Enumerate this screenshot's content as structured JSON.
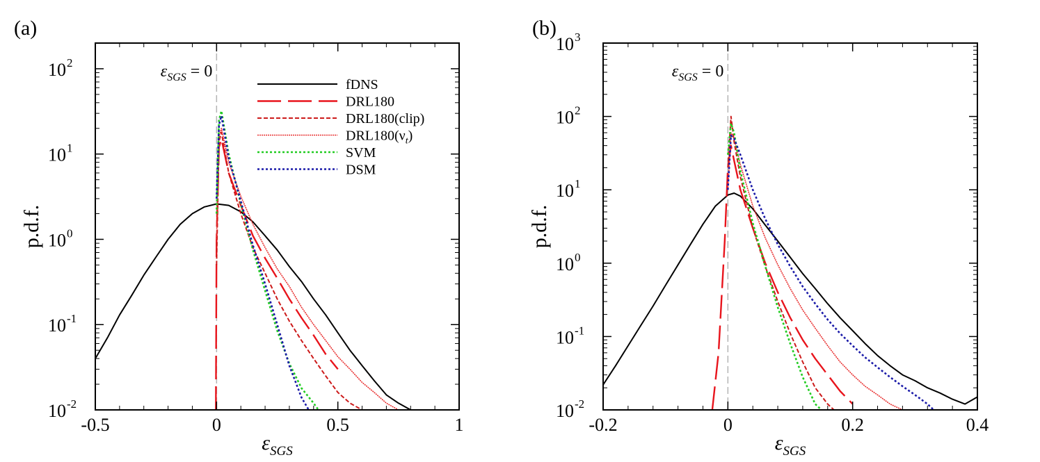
{
  "chart_data": [
    {
      "type": "line",
      "panel_label": "(a)",
      "ylabel": "p.d.f.",
      "xlabel_main": "ε",
      "xlabel_sub": "SGS",
      "yscale": "log",
      "xlim": [
        -0.5,
        1.0
      ],
      "ylim": [
        0.01,
        200
      ],
      "x_ticks": [
        -0.5,
        0,
        0.5,
        1
      ],
      "x_tick_labels": [
        "-0.5",
        "0",
        "0.5",
        "1"
      ],
      "y_ticks": [
        0.01,
        0.1,
        1,
        10,
        100
      ],
      "y_tick_labels": [
        {
          "base": "10",
          "exp": "-2"
        },
        {
          "base": "10",
          "exp": "-1"
        },
        {
          "base": "10",
          "exp": "0"
        },
        {
          "base": "10",
          "exp": "1"
        },
        {
          "base": "10",
          "exp": "2"
        }
      ],
      "annotation": {
        "main": "ε",
        "sub": "SGS",
        "rest": " = 0",
        "x": 0
      },
      "legend_position": "top-right",
      "series": [
        {
          "name": "fDNS",
          "style": "solid",
          "color": "#000000",
          "x": [
            -0.5,
            -0.45,
            -0.4,
            -0.35,
            -0.3,
            -0.25,
            -0.2,
            -0.15,
            -0.1,
            -0.05,
            0,
            0.05,
            0.1,
            0.15,
            0.2,
            0.25,
            0.3,
            0.35,
            0.4,
            0.45,
            0.5,
            0.55,
            0.6,
            0.65,
            0.7,
            0.75,
            0.8,
            0.85
          ],
          "y": [
            0.04,
            0.07,
            0.13,
            0.22,
            0.38,
            0.62,
            1.0,
            1.5,
            2.0,
            2.4,
            2.6,
            2.5,
            2.1,
            1.6,
            1.1,
            0.75,
            0.48,
            0.32,
            0.2,
            0.13,
            0.08,
            0.05,
            0.033,
            0.022,
            0.015,
            0.012,
            0.01,
            0.01
          ]
        },
        {
          "name": "DRL180",
          "style": "longdash",
          "color": "#e8141c",
          "x": [
            -0.003,
            0.0,
            0.01,
            0.02,
            0.05,
            0.1,
            0.15,
            0.2,
            0.25,
            0.3,
            0.35,
            0.4,
            0.45,
            0.5
          ],
          "y": [
            0.01,
            1.0,
            12,
            15,
            6,
            2.5,
            1.1,
            0.6,
            0.35,
            0.2,
            0.12,
            0.075,
            0.045,
            0.03
          ]
        },
        {
          "name": "DRL180(clip)",
          "style": "shortdash",
          "color": "#cc1a1a",
          "x": [
            0.0,
            0.01,
            0.02,
            0.05,
            0.1,
            0.15,
            0.2,
            0.25,
            0.3,
            0.35,
            0.4,
            0.45,
            0.5,
            0.55,
            0.6
          ],
          "y": [
            0.5,
            14,
            18,
            6,
            2.0,
            0.8,
            0.4,
            0.2,
            0.11,
            0.065,
            0.04,
            0.025,
            0.016,
            0.012,
            0.01
          ]
        },
        {
          "name": "DRL180(ν_t)",
          "style": "dotted-solid",
          "color": "#e83030",
          "x": [
            0.0,
            0.01,
            0.02,
            0.05,
            0.1,
            0.15,
            0.2,
            0.25,
            0.3,
            0.35,
            0.4,
            0.45,
            0.5,
            0.55,
            0.6,
            0.65,
            0.7,
            0.75
          ],
          "y": [
            1.0,
            16,
            20,
            8,
            3.2,
            1.5,
            0.8,
            0.45,
            0.28,
            0.16,
            0.1,
            0.065,
            0.042,
            0.03,
            0.021,
            0.016,
            0.012,
            0.01
          ]
        },
        {
          "name": "SVM",
          "style": "dotted",
          "color": "#22cc22",
          "x": [
            0.0,
            0.01,
            0.02,
            0.05,
            0.1,
            0.15,
            0.2,
            0.25,
            0.3,
            0.35,
            0.4,
            0.42
          ],
          "y": [
            2.0,
            25,
            32,
            10,
            2.6,
            0.75,
            0.25,
            0.085,
            0.035,
            0.018,
            0.012,
            0.01
          ]
        },
        {
          "name": "DSM",
          "style": "dotted",
          "color": "#1a1aa8",
          "x": [
            0.0,
            0.01,
            0.02,
            0.05,
            0.1,
            0.15,
            0.2,
            0.25,
            0.3,
            0.35,
            0.38
          ],
          "y": [
            3.0,
            22,
            28,
            9,
            2.8,
            0.85,
            0.3,
            0.1,
            0.033,
            0.014,
            0.01
          ]
        }
      ]
    },
    {
      "type": "line",
      "panel_label": "(b)",
      "ylabel": "p.d.f.",
      "xlabel_main": "ε",
      "xlabel_sub": "SGS",
      "yscale": "log",
      "xlim": [
        -0.2,
        0.4
      ],
      "ylim": [
        0.01,
        1000
      ],
      "x_ticks": [
        -0.2,
        0,
        0.2,
        0.4
      ],
      "x_tick_labels": [
        "-0.2",
        "0",
        "0.2",
        "0.4"
      ],
      "y_ticks": [
        0.01,
        0.1,
        1,
        10,
        100,
        1000
      ],
      "y_tick_labels": [
        {
          "base": "10",
          "exp": "-2"
        },
        {
          "base": "10",
          "exp": "-1"
        },
        {
          "base": "10",
          "exp": "0"
        },
        {
          "base": "10",
          "exp": "1"
        },
        {
          "base": "10",
          "exp": "2"
        },
        {
          "base": "10",
          "exp": "3"
        }
      ],
      "annotation": {
        "main": "ε",
        "sub": "SGS",
        "rest": " = 0",
        "x": 0
      },
      "series": [
        {
          "name": "fDNS",
          "style": "solid",
          "color": "#000000",
          "x": [
            -0.2,
            -0.18,
            -0.16,
            -0.14,
            -0.12,
            -0.1,
            -0.08,
            -0.06,
            -0.04,
            -0.02,
            0.0,
            0.01,
            0.02,
            0.04,
            0.06,
            0.08,
            0.1,
            0.12,
            0.14,
            0.16,
            0.18,
            0.2,
            0.22,
            0.24,
            0.26,
            0.28,
            0.3,
            0.32,
            0.34,
            0.36,
            0.38,
            0.4
          ],
          "y": [
            0.022,
            0.04,
            0.075,
            0.14,
            0.26,
            0.5,
            0.95,
            1.8,
            3.4,
            6.0,
            8.5,
            9.0,
            8.2,
            5.5,
            3.3,
            2.0,
            1.2,
            0.72,
            0.45,
            0.28,
            0.18,
            0.12,
            0.08,
            0.055,
            0.04,
            0.03,
            0.025,
            0.02,
            0.017,
            0.014,
            0.012,
            0.015
          ]
        },
        {
          "name": "DRL180",
          "style": "longdash",
          "color": "#e8141c",
          "x": [
            -0.025,
            -0.015,
            -0.005,
            0.0,
            0.005,
            0.01,
            0.02,
            0.04,
            0.06,
            0.08,
            0.1,
            0.12,
            0.14,
            0.16,
            0.18,
            0.2
          ],
          "y": [
            0.01,
            0.06,
            2.0,
            20,
            40,
            25,
            10,
            3.0,
            1.0,
            0.4,
            0.18,
            0.09,
            0.05,
            0.03,
            0.018,
            0.012
          ]
        },
        {
          "name": "DRL180(clip)",
          "style": "shortdash",
          "color": "#cc1a1a",
          "x": [
            0.0,
            0.005,
            0.01,
            0.02,
            0.04,
            0.06,
            0.08,
            0.1,
            0.12,
            0.14,
            0.16,
            0.17
          ],
          "y": [
            20,
            100,
            45,
            15,
            3.0,
            0.9,
            0.3,
            0.11,
            0.045,
            0.02,
            0.012,
            0.01
          ]
        },
        {
          "name": "DRL180(ν_t)",
          "style": "dotted-solid",
          "color": "#e83030",
          "x": [
            0.0,
            0.005,
            0.01,
            0.02,
            0.04,
            0.06,
            0.08,
            0.1,
            0.12,
            0.14,
            0.16,
            0.18,
            0.2,
            0.22,
            0.24,
            0.26,
            0.28
          ],
          "y": [
            10,
            60,
            50,
            22,
            6.0,
            2.2,
            0.95,
            0.45,
            0.23,
            0.13,
            0.075,
            0.045,
            0.03,
            0.021,
            0.016,
            0.012,
            0.01
          ]
        },
        {
          "name": "SVM",
          "style": "dotted",
          "color": "#22cc22",
          "x": [
            0.0,
            0.005,
            0.01,
            0.02,
            0.04,
            0.06,
            0.08,
            0.1,
            0.12,
            0.14,
            0.15
          ],
          "y": [
            30,
            80,
            60,
            18,
            3.5,
            0.9,
            0.25,
            0.08,
            0.028,
            0.012,
            0.01
          ]
        },
        {
          "name": "DSM",
          "style": "dotted",
          "color": "#1a1aa8",
          "x": [
            0.0,
            0.005,
            0.01,
            0.02,
            0.04,
            0.06,
            0.08,
            0.1,
            0.12,
            0.14,
            0.16,
            0.18,
            0.2,
            0.22,
            0.24,
            0.26,
            0.28,
            0.3,
            0.32,
            0.33
          ],
          "y": [
            10,
            55,
            50,
            30,
            10,
            4.0,
            1.8,
            0.9,
            0.48,
            0.28,
            0.17,
            0.11,
            0.075,
            0.052,
            0.038,
            0.028,
            0.021,
            0.016,
            0.012,
            0.01
          ]
        }
      ]
    }
  ]
}
